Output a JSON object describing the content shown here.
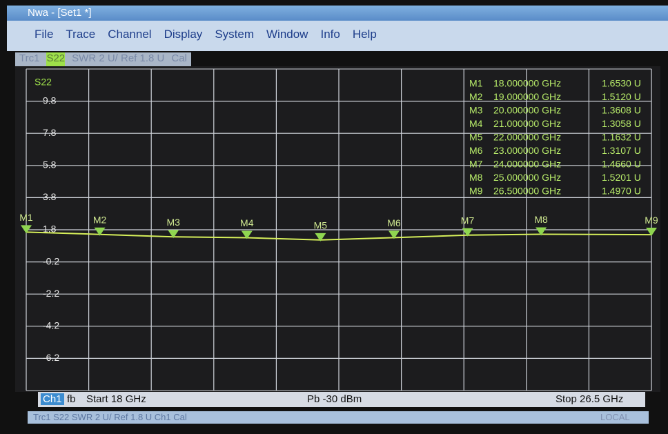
{
  "window": {
    "title": "Nwa - [Set1 *]"
  },
  "menu": [
    "File",
    "Trace",
    "Channel",
    "Display",
    "System",
    "Window",
    "Info",
    "Help"
  ],
  "trace_bar": [
    "Trc1",
    "S22",
    "SWR  2 U/ Ref 1.8 U",
    "Cal"
  ],
  "chart_data": {
    "type": "line",
    "trace_label": "S22",
    "color": "#d6ef5a",
    "grid": true,
    "xlim": [
      18,
      26.5
    ],
    "ylim": [
      -8.2,
      11.8
    ],
    "yticks": [
      9.8,
      7.8,
      5.8,
      3.8,
      1.8,
      -0.2,
      -2.2,
      -4.2,
      -6.2
    ],
    "markers": {
      "names": [
        "M1",
        "M2",
        "M3",
        "M4",
        "M5",
        "M6",
        "M7",
        "M8",
        "M9"
      ],
      "x": [
        18,
        19,
        20,
        21,
        22,
        23,
        24,
        25,
        26.5
      ],
      "x_labels": [
        "18.000000 GHz",
        "19.000000 GHz",
        "20.000000 GHz",
        "21.000000 GHz",
        "22.000000 GHz",
        "23.000000 GHz",
        "24.000000 GHz",
        "25.000000 GHz",
        "26.500000 GHz"
      ],
      "values": [
        1.653,
        1.512,
        1.3608,
        1.3058,
        1.1632,
        1.3107,
        1.466,
        1.5201,
        1.497
      ],
      "value_labels": [
        "1.6530  U",
        "1.5120  U",
        "1.3608  U",
        "1.3058  U",
        "1.1632  U",
        "1.3107  U",
        "1.4660  U",
        "1.5201  U",
        "1.4970  U"
      ]
    }
  },
  "footer": {
    "channel": "Ch1",
    "mode": "fb",
    "start": "Start  18 GHz",
    "power": "Pb  -30 dBm",
    "stop": "Stop  26.5 GHz"
  },
  "status": {
    "text": "Trc1  S22  SWR  2 U/ Ref 1.8 U  Ch1  Cal",
    "remote": "LOCAL"
  }
}
